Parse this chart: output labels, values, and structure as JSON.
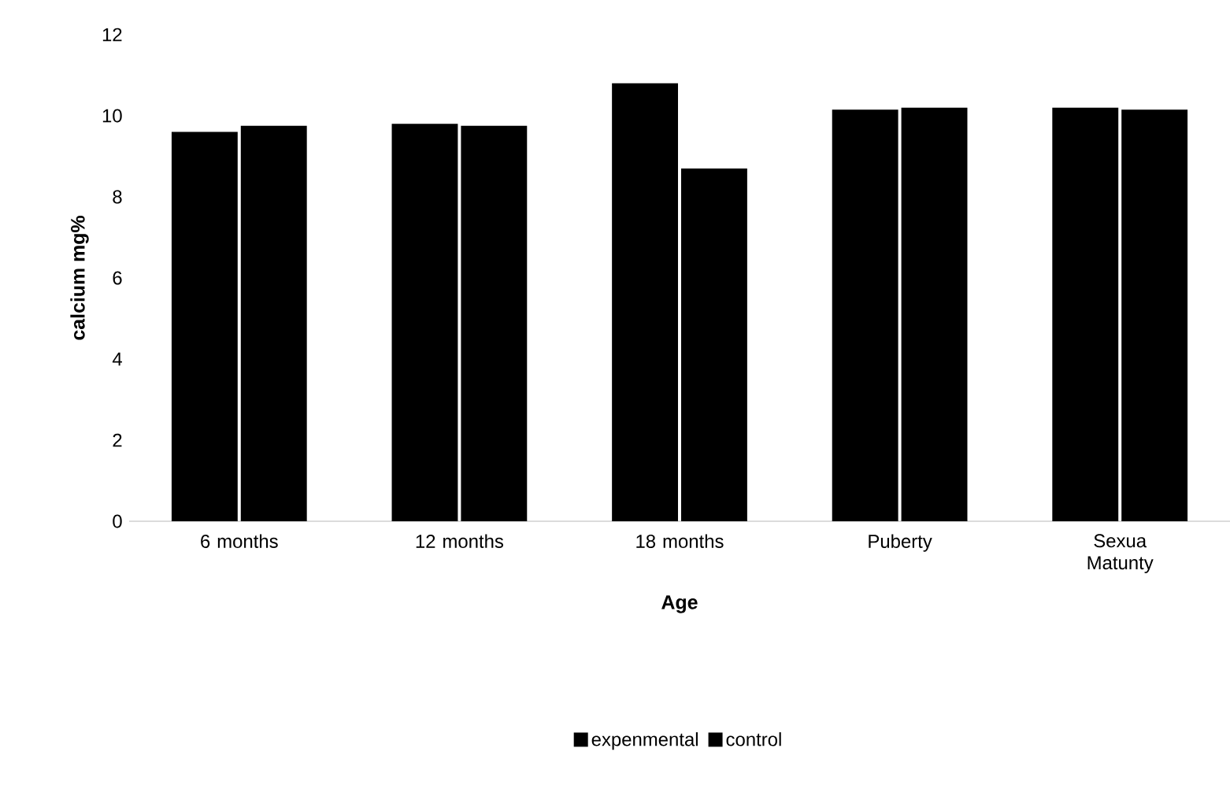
{
  "chart_data": {
    "type": "bar",
    "xlabel": "Age",
    "ylabel": "calcium mg%",
    "categories": [
      "6 months",
      "12 months",
      "18 months",
      "Puberty",
      "Sexua Matunty"
    ],
    "series": [
      {
        "name": "expenmental",
        "color": "#000000",
        "values": [
          9.6,
          9.8,
          10.8,
          10.15,
          10.2
        ]
      },
      {
        "name": "control",
        "color": "#000000",
        "values": [
          9.75,
          9.75,
          8.7,
          10.2,
          10.15
        ]
      }
    ],
    "ylim": [
      0,
      12
    ],
    "yticks": [
      0,
      2,
      4,
      6,
      8,
      10,
      12
    ],
    "legend": "bottom"
  }
}
